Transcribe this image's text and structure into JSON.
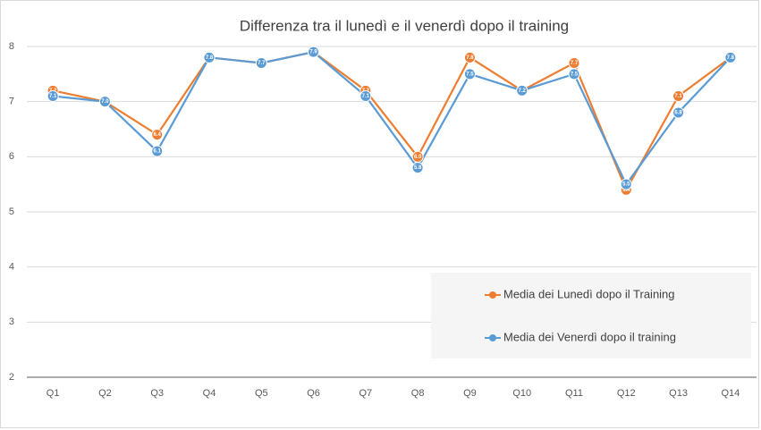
{
  "chart_data": {
    "type": "line",
    "title": "Differenza tra il lunedì e il venerdì dopo il training",
    "categories": [
      "Q1",
      "Q2",
      "Q3",
      "Q4",
      "Q5",
      "Q6",
      "Q7",
      "Q8",
      "Q9",
      "Q10",
      "Q11",
      "Q12",
      "Q13",
      "Q14"
    ],
    "series": [
      {
        "name": "Media dei Lunedì dopo il Training",
        "color": "#ed7d31",
        "values": [
          7.2,
          7.0,
          6.4,
          7.8,
          7.7,
          7.9,
          7.2,
          6.0,
          7.8,
          7.2,
          7.7,
          5.4,
          7.1,
          7.8
        ],
        "value_labels": [
          "7.2",
          "7.0",
          "6.4",
          "7.8",
          "7.7",
          "7.9",
          "7.2",
          "6.0",
          "7.8",
          "7.2",
          "7.7",
          "5.4",
          "7.1",
          "7.8"
        ]
      },
      {
        "name": "Media dei Venerdì dopo il training",
        "color": "#5b9bd5",
        "values": [
          7.1,
          7.0,
          6.1,
          7.8,
          7.7,
          7.9,
          7.1,
          5.8,
          7.5,
          7.2,
          7.5,
          5.5,
          6.8,
          7.8
        ],
        "value_labels": [
          "7.1",
          "7.0",
          "6.1",
          "7.8",
          "7.7",
          "7.9",
          "7.1",
          "5.8",
          "7.5",
          "7.2",
          "7.5",
          "5.5",
          "6.8",
          "7.8"
        ]
      }
    ],
    "ylim": [
      2,
      8
    ],
    "yticks": [
      2,
      3,
      4,
      5,
      6,
      7,
      8
    ],
    "grid": true,
    "legend": "lower right"
  }
}
